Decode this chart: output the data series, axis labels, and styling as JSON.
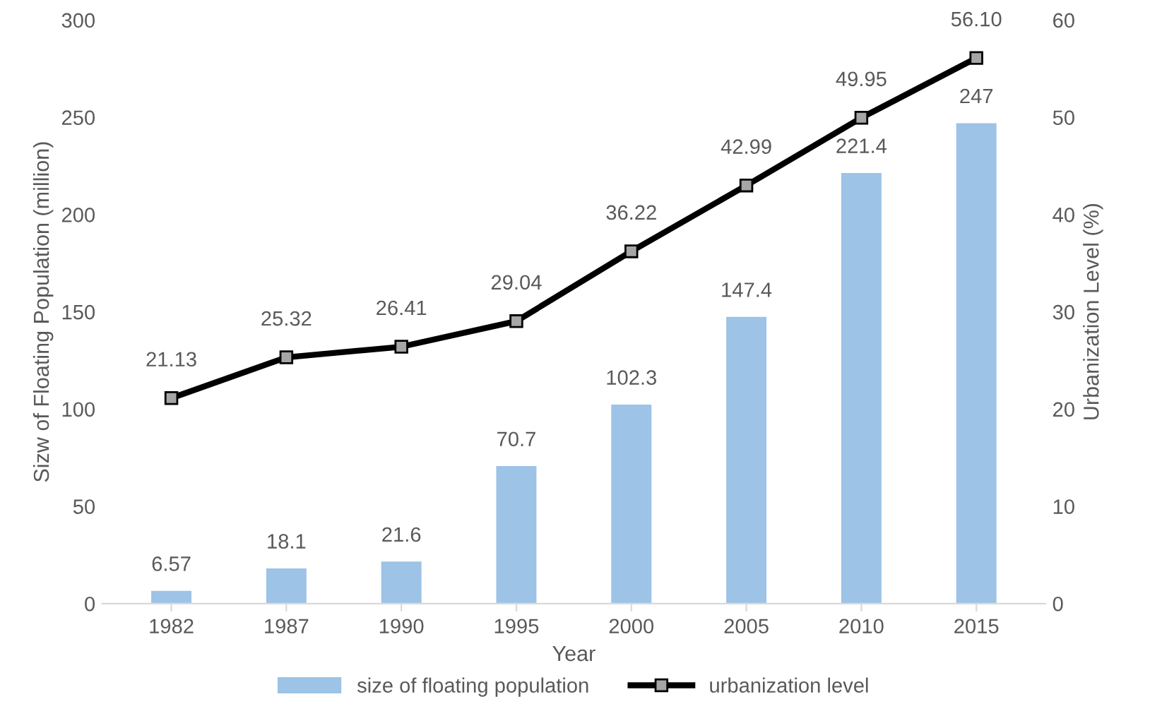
{
  "chart_data": {
    "type": "bar",
    "xlabel": "Year",
    "ylabel": "Sizw of Floating Population (million)",
    "y2label": "Urbanization Level (%)",
    "categories": [
      "1982",
      "1987",
      "1990",
      "1995",
      "2000",
      "2005",
      "2010",
      "2015"
    ],
    "series": [
      {
        "name": "size of floating population",
        "color": "#9dc3e6",
        "values": [
          6.57,
          18.1,
          21.6,
          70.7,
          102.3,
          147.4,
          221.4,
          247
        ]
      },
      {
        "name": "urbanization level",
        "type": "line",
        "axis": "y2",
        "color": "#000000",
        "marker": "square",
        "values": [
          21.13,
          25.32,
          26.41,
          29.04,
          36.22,
          42.99,
          49.95,
          56.1
        ],
        "value_labels": [
          "21.13",
          "25.32",
          "26.41",
          "29.04",
          "36.22",
          "42.99",
          "49.95",
          "56.10"
        ]
      }
    ],
    "ylim": [
      0,
      300
    ],
    "yticks": [
      0,
      50,
      100,
      150,
      200,
      250,
      300
    ],
    "y2lim": [
      0,
      60
    ],
    "y2ticks": [
      0,
      10,
      20,
      30,
      40,
      50,
      60
    ],
    "data_labels": true,
    "legend": "bottom",
    "grid": false
  }
}
